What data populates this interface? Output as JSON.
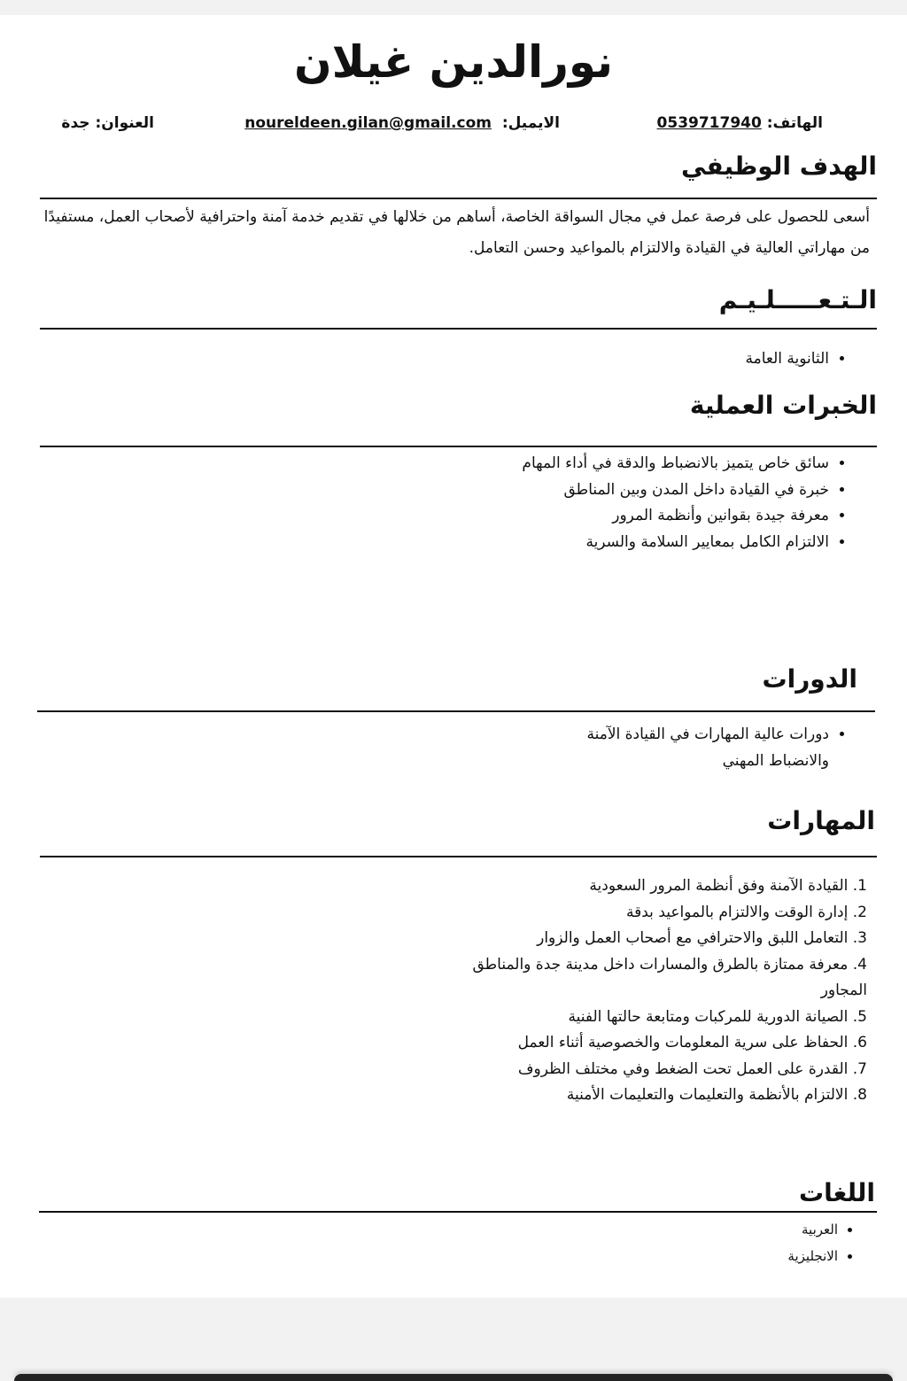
{
  "name": "نورالدين غيلان",
  "contact": {
    "phone_label": "الهاتف:",
    "phone": "0539717940",
    "email_label": "الايميل:",
    "email": "noureldeen.gilan@gmail.com",
    "address": "العنوان: جدة"
  },
  "objective": {
    "title": "الهدف الوظيفي",
    "text": "أسعى للحصول على فرصة عمل في مجال السواقة الخاصة، أساهم من خلالها في تقديم خدمة آمنة واحترافية لأصحاب العمل، مستفيدًا من مهاراتي العالية في القيادة والالتزام بالمواعيد وحسن التعامل."
  },
  "education": {
    "title": "الـتـعـــــلـيـم",
    "items": [
      "الثانوية العامة"
    ]
  },
  "experience": {
    "title": "الخبرات العملية",
    "items": [
      "سائق خاص يتميز بالانضباط والدقة في أداء المهام",
      "خبرة في القيادة داخل المدن وبين المناطق",
      "معرفة جيدة بقوانين وأنظمة المرور",
      "الالتزام الكامل بمعايير السلامة والسرية"
    ]
  },
  "courses": {
    "title": "الدورات",
    "items": [
      "دورات عالية المهارات في القيادة الآمنة والانضباط المهني"
    ]
  },
  "skills": {
    "title": "المهارات",
    "items": [
      "1. القيادة الآمنة وفق أنظمة المرور السعودية",
      "2. إدارة الوقت والالتزام بالمواعيد بدقة",
      "3. التعامل اللبق والاحترافي مع أصحاب العمل والزوار",
      "4. معرفة ممتازة بالطرق والمسارات داخل مدينة جدة والمناطق المجاور",
      "5. الصيانة الدورية للمركبات ومتابعة حالتها الفنية",
      "6. الحفاظ على سرية المعلومات والخصوصية أثناء العمل",
      "7. القدرة على العمل تحت الضغط وفي مختلف الظروف",
      "8. الالتزام بالأنظمة والتعليمات والتعليمات الأمنية"
    ]
  },
  "languages": {
    "title": "اللغات",
    "items": [
      "العربية",
      "الانجليزية"
    ]
  }
}
